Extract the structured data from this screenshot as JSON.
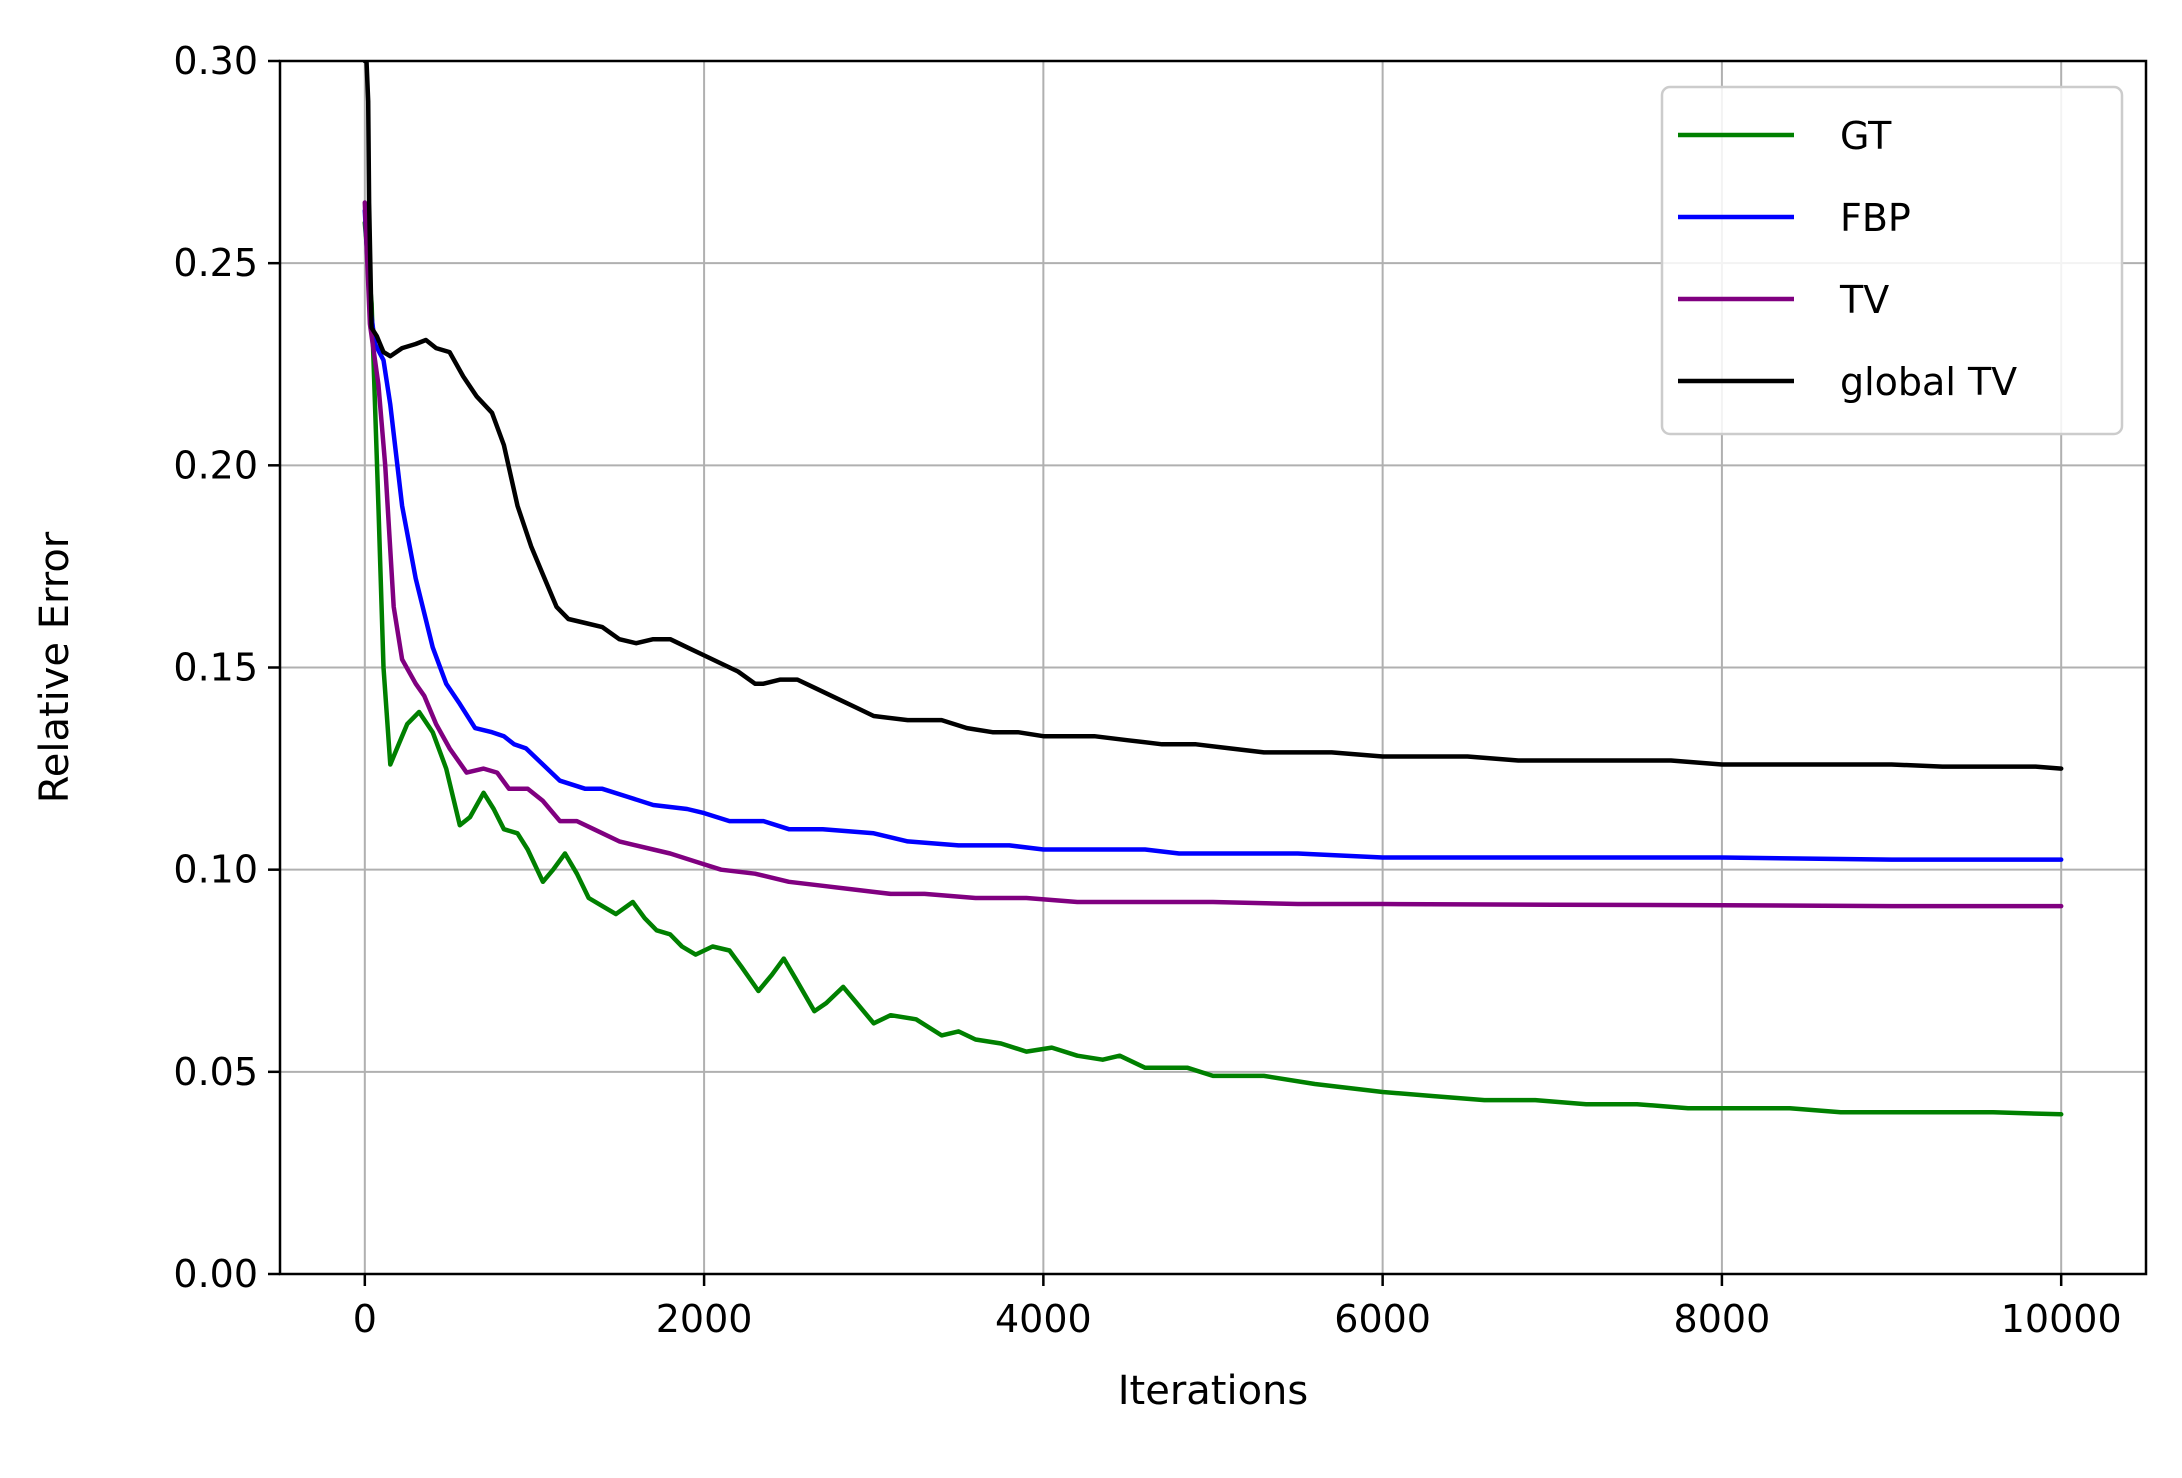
{
  "chart_data": {
    "type": "line",
    "title": "",
    "xlabel": "Iterations",
    "ylabel": "Relative Error",
    "xlim": [
      -500,
      10500
    ],
    "ylim": [
      0.0,
      0.3
    ],
    "xticks": [
      0,
      2000,
      4000,
      6000,
      8000,
      10000
    ],
    "xtick_labels": [
      "0",
      "2000",
      "4000",
      "6000",
      "8000",
      "10000"
    ],
    "yticks": [
      0.0,
      0.05,
      0.1,
      0.15,
      0.2,
      0.25,
      0.3
    ],
    "ytick_labels": [
      "0.00",
      "0.05",
      "0.10",
      "0.15",
      "0.20",
      "0.25",
      "0.30"
    ],
    "grid": true,
    "legend_position": "top-right",
    "series": [
      {
        "name": "GT",
        "color": "#008000",
        "points": [
          [
            0,
            0.26
          ],
          [
            40,
            0.24
          ],
          [
            80,
            0.19
          ],
          [
            110,
            0.15
          ],
          [
            150,
            0.126
          ],
          [
            200,
            0.131
          ],
          [
            250,
            0.136
          ],
          [
            320,
            0.139
          ],
          [
            400,
            0.134
          ],
          [
            480,
            0.125
          ],
          [
            560,
            0.111
          ],
          [
            620,
            0.113
          ],
          [
            700,
            0.119
          ],
          [
            760,
            0.115
          ],
          [
            820,
            0.11
          ],
          [
            900,
            0.109
          ],
          [
            960,
            0.105
          ],
          [
            1050,
            0.097
          ],
          [
            1110,
            0.1
          ],
          [
            1180,
            0.104
          ],
          [
            1250,
            0.099
          ],
          [
            1320,
            0.093
          ],
          [
            1400,
            0.091
          ],
          [
            1480,
            0.089
          ],
          [
            1580,
            0.092
          ],
          [
            1650,
            0.088
          ],
          [
            1720,
            0.085
          ],
          [
            1800,
            0.084
          ],
          [
            1870,
            0.081
          ],
          [
            1950,
            0.079
          ],
          [
            2050,
            0.081
          ],
          [
            2150,
            0.08
          ],
          [
            2220,
            0.076
          ],
          [
            2320,
            0.07
          ],
          [
            2400,
            0.074
          ],
          [
            2470,
            0.078
          ],
          [
            2540,
            0.073
          ],
          [
            2650,
            0.065
          ],
          [
            2720,
            0.067
          ],
          [
            2820,
            0.071
          ],
          [
            2900,
            0.067
          ],
          [
            3000,
            0.062
          ],
          [
            3100,
            0.064
          ],
          [
            3250,
            0.063
          ],
          [
            3400,
            0.059
          ],
          [
            3500,
            0.06
          ],
          [
            3600,
            0.058
          ],
          [
            3750,
            0.057
          ],
          [
            3900,
            0.055
          ],
          [
            4050,
            0.056
          ],
          [
            4200,
            0.054
          ],
          [
            4350,
            0.053
          ],
          [
            4450,
            0.054
          ],
          [
            4600,
            0.051
          ],
          [
            4850,
            0.051
          ],
          [
            5000,
            0.049
          ],
          [
            5300,
            0.049
          ],
          [
            5600,
            0.047
          ],
          [
            5800,
            0.046
          ],
          [
            6000,
            0.045
          ],
          [
            6300,
            0.044
          ],
          [
            6600,
            0.043
          ],
          [
            6900,
            0.043
          ],
          [
            7200,
            0.042
          ],
          [
            7500,
            0.042
          ],
          [
            7800,
            0.041
          ],
          [
            8100,
            0.041
          ],
          [
            8400,
            0.041
          ],
          [
            8700,
            0.04
          ],
          [
            9000,
            0.04
          ],
          [
            9300,
            0.04
          ],
          [
            9600,
            0.04
          ],
          [
            10000,
            0.0395
          ]
        ]
      },
      {
        "name": "FBP",
        "color": "#0000ff",
        "points": [
          [
            0,
            0.263
          ],
          [
            30,
            0.24
          ],
          [
            60,
            0.23
          ],
          [
            110,
            0.226
          ],
          [
            150,
            0.215
          ],
          [
            220,
            0.19
          ],
          [
            300,
            0.172
          ],
          [
            400,
            0.155
          ],
          [
            480,
            0.146
          ],
          [
            560,
            0.141
          ],
          [
            650,
            0.135
          ],
          [
            750,
            0.134
          ],
          [
            820,
            0.133
          ],
          [
            880,
            0.131
          ],
          [
            950,
            0.13
          ],
          [
            1050,
            0.126
          ],
          [
            1150,
            0.122
          ],
          [
            1300,
            0.12
          ],
          [
            1400,
            0.12
          ],
          [
            1550,
            0.118
          ],
          [
            1700,
            0.116
          ],
          [
            1900,
            0.115
          ],
          [
            2000,
            0.114
          ],
          [
            2150,
            0.112
          ],
          [
            2350,
            0.112
          ],
          [
            2500,
            0.11
          ],
          [
            2700,
            0.11
          ],
          [
            3000,
            0.109
          ],
          [
            3200,
            0.107
          ],
          [
            3500,
            0.106
          ],
          [
            3800,
            0.106
          ],
          [
            4000,
            0.105
          ],
          [
            4300,
            0.105
          ],
          [
            4600,
            0.105
          ],
          [
            4800,
            0.104
          ],
          [
            5000,
            0.104
          ],
          [
            5500,
            0.104
          ],
          [
            6000,
            0.103
          ],
          [
            7000,
            0.103
          ],
          [
            8000,
            0.103
          ],
          [
            9000,
            0.1025
          ],
          [
            10000,
            0.1025
          ]
        ]
      },
      {
        "name": "TV",
        "color": "#800080",
        "points": [
          [
            0,
            0.265
          ],
          [
            30,
            0.235
          ],
          [
            80,
            0.22
          ],
          [
            120,
            0.2
          ],
          [
            170,
            0.165
          ],
          [
            220,
            0.152
          ],
          [
            300,
            0.146
          ],
          [
            350,
            0.143
          ],
          [
            420,
            0.136
          ],
          [
            500,
            0.13
          ],
          [
            600,
            0.124
          ],
          [
            700,
            0.125
          ],
          [
            780,
            0.124
          ],
          [
            850,
            0.12
          ],
          [
            960,
            0.12
          ],
          [
            1050,
            0.117
          ],
          [
            1150,
            0.112
          ],
          [
            1250,
            0.112
          ],
          [
            1350,
            0.11
          ],
          [
            1500,
            0.107
          ],
          [
            1700,
            0.105
          ],
          [
            1800,
            0.104
          ],
          [
            1950,
            0.102
          ],
          [
            2100,
            0.1
          ],
          [
            2300,
            0.099
          ],
          [
            2500,
            0.097
          ],
          [
            2700,
            0.096
          ],
          [
            2900,
            0.095
          ],
          [
            3100,
            0.094
          ],
          [
            3300,
            0.094
          ],
          [
            3600,
            0.093
          ],
          [
            3900,
            0.093
          ],
          [
            4200,
            0.092
          ],
          [
            4600,
            0.092
          ],
          [
            5000,
            0.092
          ],
          [
            5500,
            0.0915
          ],
          [
            6000,
            0.0915
          ],
          [
            7000,
            0.0913
          ],
          [
            8000,
            0.0912
          ],
          [
            9000,
            0.091
          ],
          [
            10000,
            0.091
          ]
        ]
      },
      {
        "name": "global TV",
        "color": "#000000",
        "points": [
          [
            0,
            0.3
          ],
          [
            10,
            0.3
          ],
          [
            20,
            0.29
          ],
          [
            25,
            0.265
          ],
          [
            40,
            0.234
          ],
          [
            70,
            0.232
          ],
          [
            110,
            0.228
          ],
          [
            150,
            0.227
          ],
          [
            220,
            0.229
          ],
          [
            300,
            0.23
          ],
          [
            360,
            0.231
          ],
          [
            420,
            0.229
          ],
          [
            500,
            0.228
          ],
          [
            580,
            0.222
          ],
          [
            660,
            0.217
          ],
          [
            750,
            0.213
          ],
          [
            820,
            0.205
          ],
          [
            900,
            0.19
          ],
          [
            980,
            0.18
          ],
          [
            1050,
            0.173
          ],
          [
            1130,
            0.165
          ],
          [
            1200,
            0.162
          ],
          [
            1300,
            0.161
          ],
          [
            1400,
            0.16
          ],
          [
            1500,
            0.157
          ],
          [
            1600,
            0.156
          ],
          [
            1700,
            0.157
          ],
          [
            1800,
            0.157
          ],
          [
            1900,
            0.155
          ],
          [
            2000,
            0.153
          ],
          [
            2100,
            0.151
          ],
          [
            2200,
            0.149
          ],
          [
            2300,
            0.146
          ],
          [
            2350,
            0.146
          ],
          [
            2450,
            0.147
          ],
          [
            2550,
            0.147
          ],
          [
            2650,
            0.145
          ],
          [
            2800,
            0.142
          ],
          [
            2900,
            0.14
          ],
          [
            3000,
            0.138
          ],
          [
            3200,
            0.137
          ],
          [
            3400,
            0.137
          ],
          [
            3550,
            0.135
          ],
          [
            3700,
            0.134
          ],
          [
            3850,
            0.134
          ],
          [
            4000,
            0.133
          ],
          [
            4100,
            0.133
          ],
          [
            4300,
            0.133
          ],
          [
            4500,
            0.132
          ],
          [
            4700,
            0.131
          ],
          [
            4900,
            0.131
          ],
          [
            5100,
            0.13
          ],
          [
            5300,
            0.129
          ],
          [
            5500,
            0.129
          ],
          [
            5700,
            0.129
          ],
          [
            6000,
            0.128
          ],
          [
            6200,
            0.128
          ],
          [
            6500,
            0.128
          ],
          [
            6800,
            0.127
          ],
          [
            7100,
            0.127
          ],
          [
            7400,
            0.127
          ],
          [
            7700,
            0.127
          ],
          [
            8000,
            0.126
          ],
          [
            8300,
            0.126
          ],
          [
            8600,
            0.126
          ],
          [
            9000,
            0.126
          ],
          [
            9300,
            0.1255
          ],
          [
            9600,
            0.1255
          ],
          [
            9850,
            0.1255
          ],
          [
            10000,
            0.125
          ]
        ]
      }
    ]
  }
}
